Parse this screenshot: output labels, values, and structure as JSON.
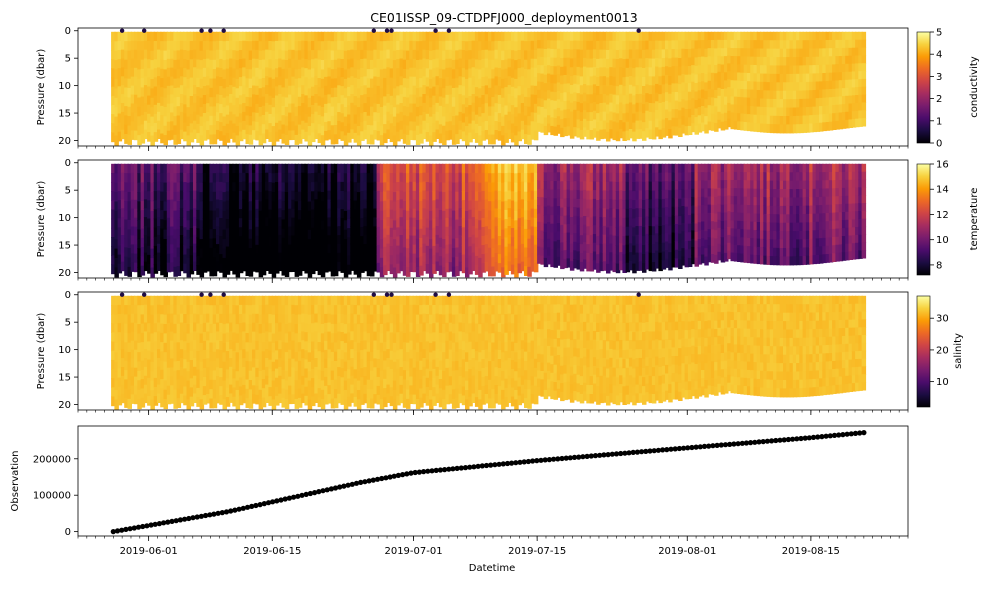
{
  "figure": {
    "title": "CE01ISSP_09-CTDPFJ000_deployment0013",
    "xlabel": "Datetime"
  },
  "colors": {
    "observation_marker": "#000000",
    "inferno": [
      "#000004",
      "#1b0c41",
      "#4a0c6b",
      "#781c6d",
      "#a52c60",
      "#cf4446",
      "#ed6925",
      "#fb9b06",
      "#f7d13d",
      "#fcffa4"
    ]
  },
  "chart_data": [
    {
      "type": "scatter",
      "panel": "conductivity",
      "ylabel": "Pressure (dbar)",
      "yticks": [
        0,
        5,
        10,
        15,
        20
      ],
      "ylim": [
        21,
        -0.5
      ],
      "y_inverted": true,
      "colorbar": {
        "label": "conductivity",
        "range": [
          0,
          5
        ],
        "ticks": [
          0,
          1,
          2,
          3,
          4,
          5
        ],
        "colormap": "inferno"
      },
      "typical_value": 4.3,
      "surface_outliers": "near-zero values scattered at ~0 dbar",
      "x_range": [
        "2019-05-28",
        "2019-08-21"
      ]
    },
    {
      "type": "scatter",
      "panel": "temperature",
      "ylabel": "Pressure (dbar)",
      "yticks": [
        0,
        5,
        10,
        15,
        20
      ],
      "ylim": [
        21,
        -0.5
      ],
      "y_inverted": true,
      "colorbar": {
        "label": "temperature",
        "range": [
          7.2,
          16
        ],
        "ticks": [
          8,
          10,
          12,
          14,
          16
        ],
        "colormap": "inferno"
      },
      "typical_range": [
        7.5,
        15.5
      ],
      "x_range": [
        "2019-05-28",
        "2019-08-21"
      ]
    },
    {
      "type": "scatter",
      "panel": "salinity",
      "ylabel": "Pressure (dbar)",
      "yticks": [
        0,
        5,
        10,
        15,
        20
      ],
      "ylim": [
        21,
        -0.5
      ],
      "y_inverted": true,
      "colorbar": {
        "label": "salinity",
        "range": [
          2,
          37
        ],
        "ticks": [
          10,
          20,
          30
        ],
        "colormap": "inferno"
      },
      "typical_value": 32,
      "surface_outliers": "near-zero values scattered at ~0 dbar",
      "x_range": [
        "2019-05-28",
        "2019-08-21"
      ]
    },
    {
      "type": "scatter",
      "panel": "observation",
      "ylabel": "Observation",
      "yticks": [
        0,
        100000,
        200000
      ],
      "ytick_labels": [
        "0",
        "100000",
        "200000"
      ],
      "ylim": [
        -12000,
        290000
      ],
      "x": [
        "2019-05-28",
        "2019-06-10",
        "2019-06-25",
        "2019-07-01",
        "2019-07-15",
        "2019-08-01",
        "2019-08-15",
        "2019-08-21"
      ],
      "y": [
        0,
        55000,
        135000,
        162000,
        195000,
        230000,
        258000,
        272000
      ]
    }
  ],
  "x_axis": {
    "range": [
      "2019-05-24",
      "2019-08-26"
    ],
    "tick_labels": [
      "2019-06-01",
      "2019-06-15",
      "2019-07-01",
      "2019-07-15",
      "2019-08-01",
      "2019-08-15"
    ],
    "minor": "daily"
  }
}
